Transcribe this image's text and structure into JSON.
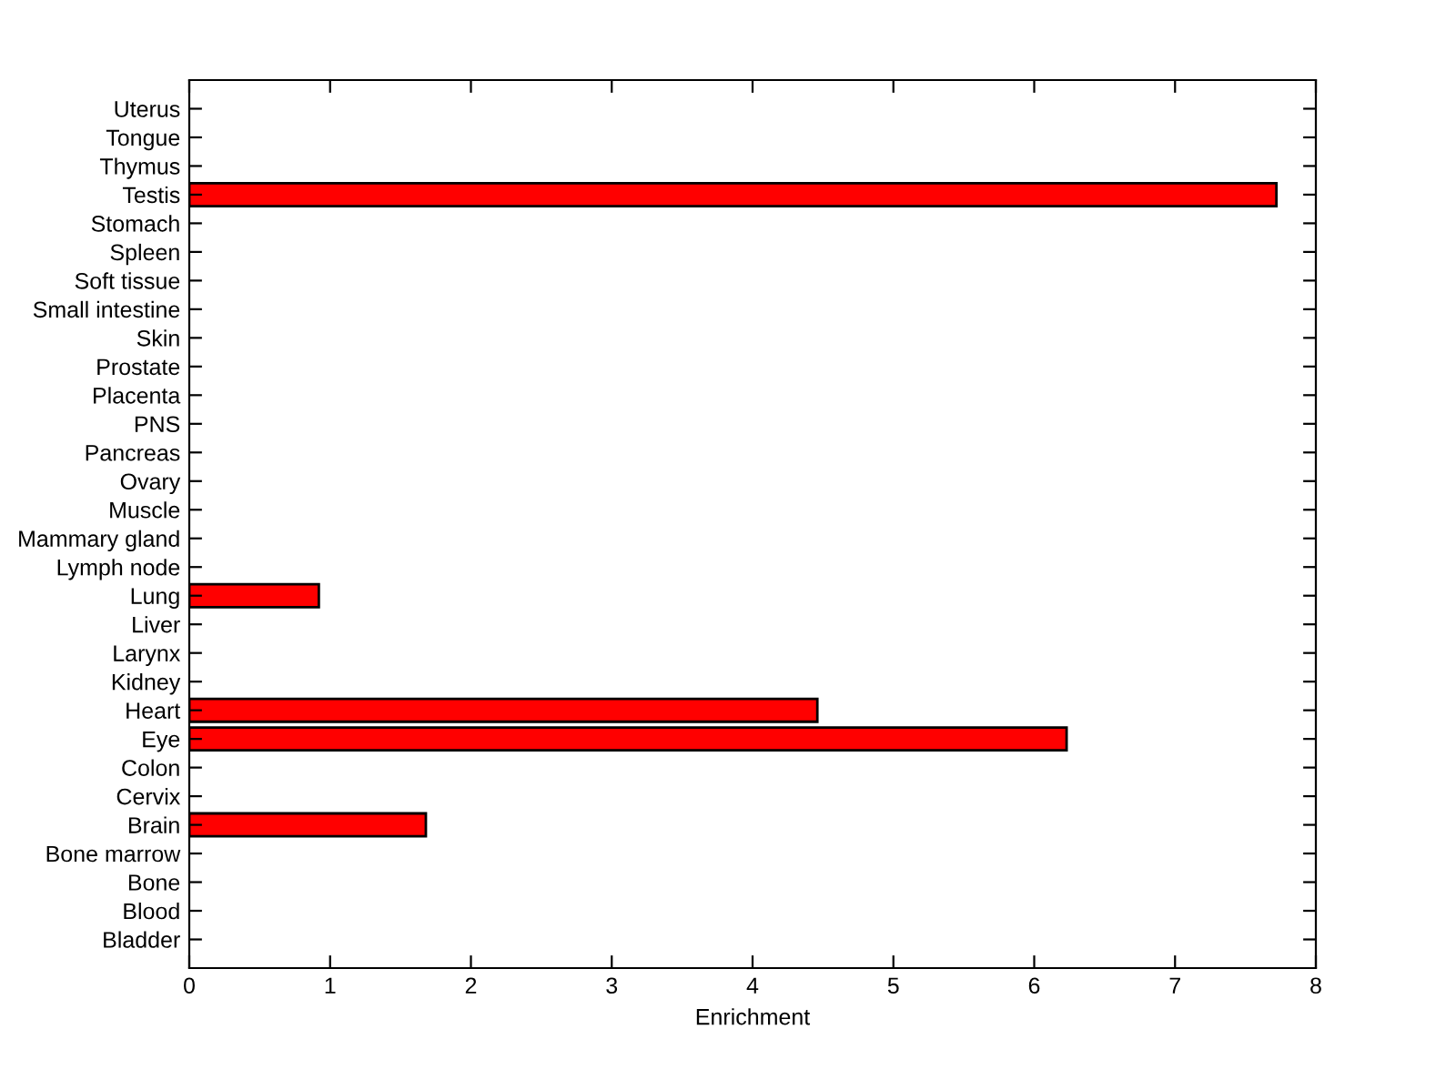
{
  "chart_data": {
    "type": "bar",
    "orientation": "horizontal",
    "xlabel": "Enrichment",
    "categories": [
      "Uterus",
      "Tongue",
      "Thymus",
      "Testis",
      "Stomach",
      "Spleen",
      "Soft tissue",
      "Small intestine",
      "Skin",
      "Prostate",
      "Placenta",
      "PNS",
      "Pancreas",
      "Ovary",
      "Muscle",
      "Mammary gland",
      "Lymph node",
      "Lung",
      "Liver",
      "Larynx",
      "Kidney",
      "Heart",
      "Eye",
      "Colon",
      "Cervix",
      "Brain",
      "Bone marrow",
      "Bone",
      "Blood",
      "Bladder"
    ],
    "values": [
      0,
      0,
      0,
      7.72,
      0,
      0,
      0,
      0,
      0,
      0,
      0,
      0,
      0,
      0,
      0,
      0,
      0,
      0.92,
      0,
      0,
      0,
      4.46,
      6.23,
      0,
      0,
      1.68,
      0,
      0,
      0,
      0
    ],
    "color": "#ff0000",
    "xlim": [
      0,
      8
    ],
    "xticks": [
      0,
      1,
      2,
      3,
      4,
      5,
      6,
      7,
      8
    ],
    "grid": false,
    "legend": false
  }
}
